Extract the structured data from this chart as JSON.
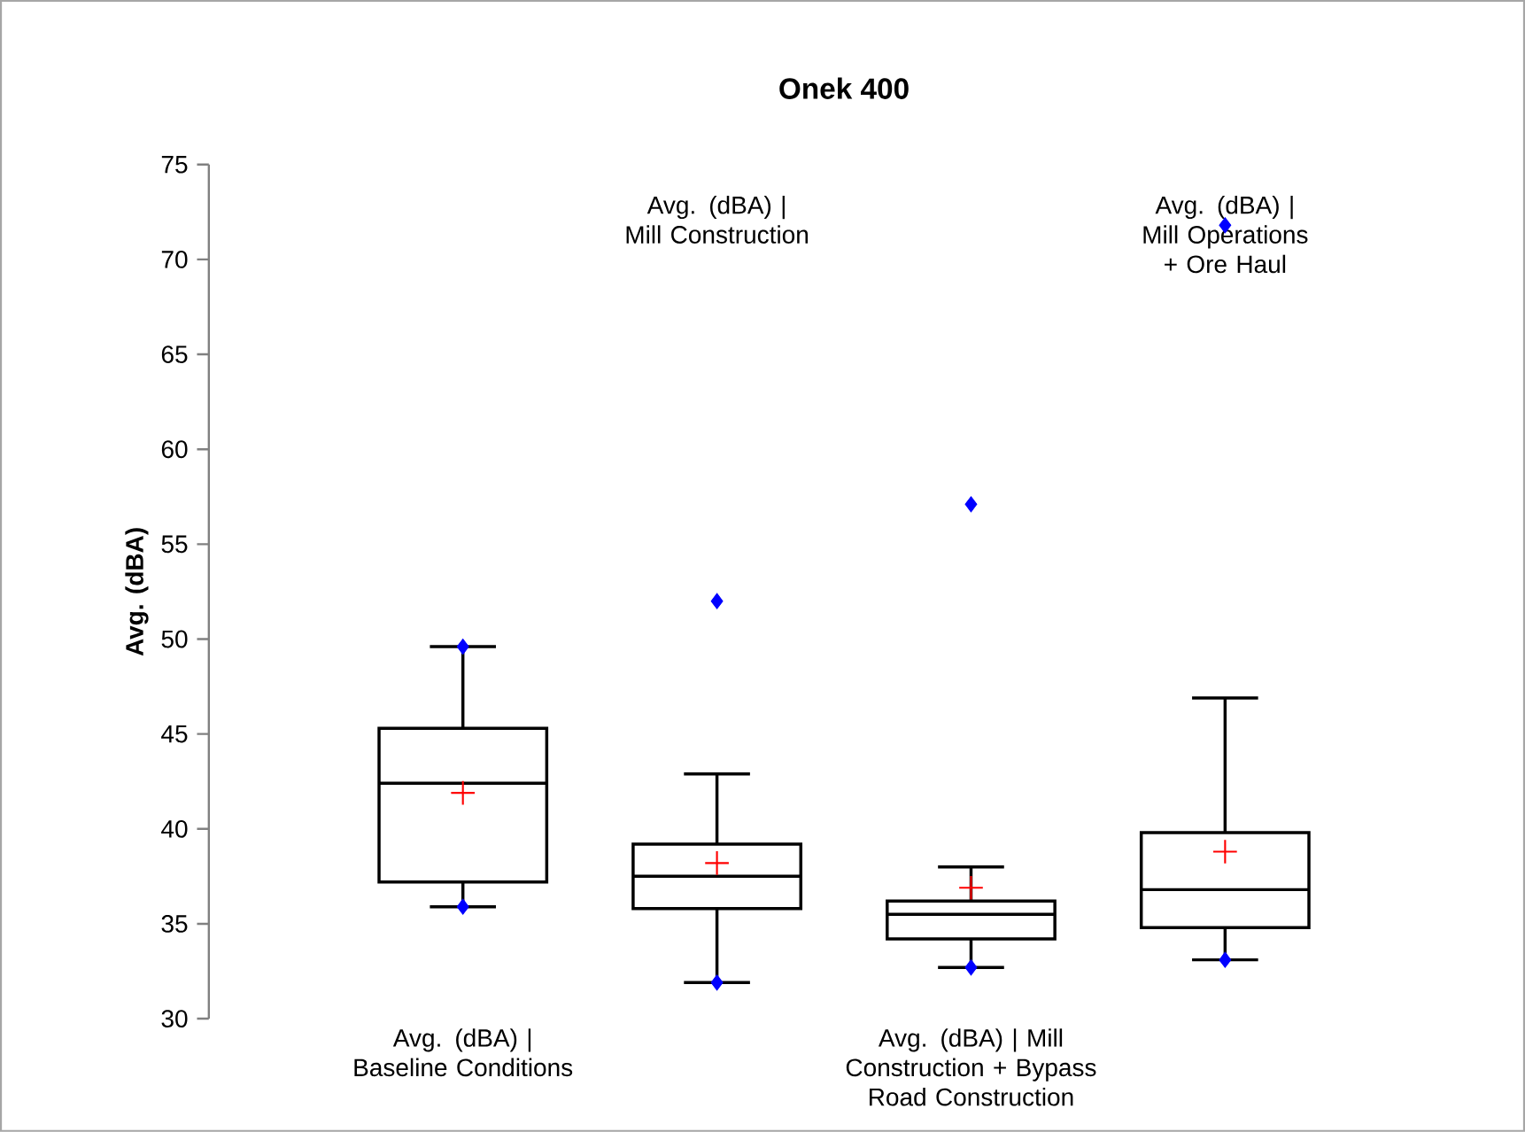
{
  "chart_data": {
    "type": "box",
    "title": "Onek 400",
    "ylabel": "Avg. (dBA)",
    "categories": [
      "Avg. (dBA) | Baseline Conditions",
      "Avg. (dBA) | Mill Construction",
      "Avg. (dBA) | Mill Construction + Bypass Road Construction",
      "Avg. (dBA) | Mill Operations + Ore Haul"
    ],
    "boxes": [
      {
        "low": 35.9,
        "q1": 37.2,
        "median": 42.4,
        "q3": 45.3,
        "high": 49.6,
        "mean": 41.9,
        "outliers": [
          35.9,
          49.6
        ]
      },
      {
        "low": 31.9,
        "q1": 35.8,
        "median": 37.5,
        "q3": 39.2,
        "high": 42.9,
        "mean": 38.2,
        "outliers": [
          31.9,
          52.0
        ]
      },
      {
        "low": 32.7,
        "q1": 34.2,
        "median": 35.5,
        "q3": 36.2,
        "high": 38.0,
        "mean": 36.9,
        "outliers": [
          32.7,
          57.1
        ]
      },
      {
        "low": 33.1,
        "q1": 34.8,
        "median": 36.8,
        "q3": 39.8,
        "high": 46.9,
        "mean": 38.8,
        "outliers": [
          33.1,
          71.8
        ]
      }
    ],
    "ylim": [
      30,
      75
    ],
    "yticks": [
      30,
      35,
      40,
      45,
      50,
      55,
      60,
      65,
      70,
      75
    ]
  }
}
